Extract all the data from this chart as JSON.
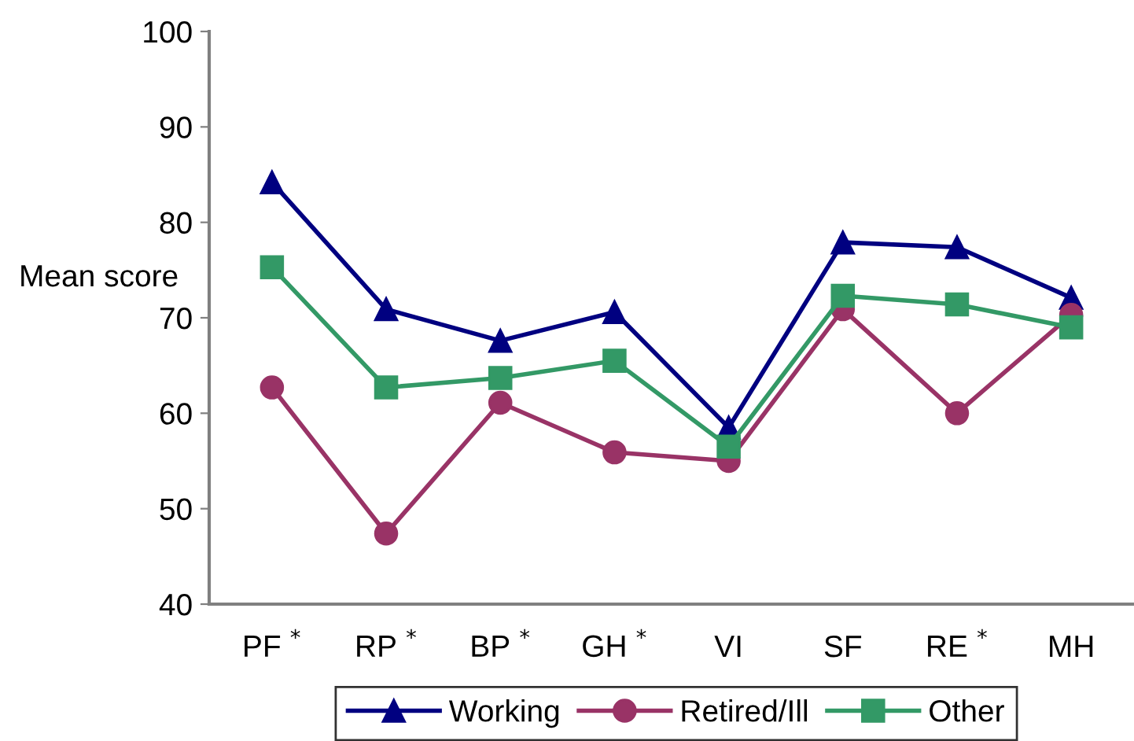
{
  "chart_data": {
    "type": "line",
    "ylabel": "Mean score",
    "categories": [
      "PF $^{*}$",
      "RP $^{*}$",
      "BP $^{*}$",
      "GH $^{*}$",
      "VI",
      "SF",
      "RE $^{*}$",
      "MH"
    ],
    "series": [
      {
        "name": "Working",
        "color": "#000080",
        "marker": "triangle",
        "values": [
          84.2,
          70.9,
          67.6,
          70.6,
          58.5,
          77.9,
          77.4,
          72.1
        ]
      },
      {
        "name": "Retired/Ill",
        "color": "#993366",
        "marker": "circle",
        "values": [
          62.7,
          47.4,
          61.1,
          55.9,
          55.0,
          70.9,
          60.0,
          70.3
        ]
      },
      {
        "name": "Other",
        "color": "#339966",
        "marker": "square",
        "values": [
          75.3,
          62.7,
          63.7,
          65.5,
          56.5,
          72.3,
          71.4,
          69.0
        ]
      }
    ],
    "ylim": [
      40,
      100
    ],
    "yticks": [
      40,
      50,
      60,
      70,
      80,
      90,
      100
    ],
    "legend": "bottom",
    "grid": false,
    "line_style": "solid"
  }
}
